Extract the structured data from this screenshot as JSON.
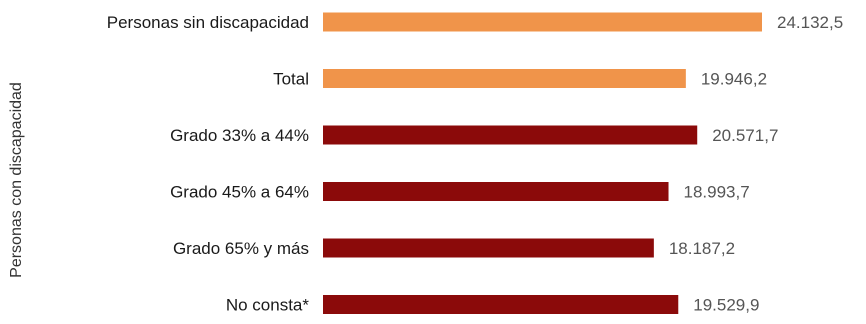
{
  "chart_data": {
    "type": "bar",
    "orientation": "horizontal",
    "categories": [
      "Personas sin discapacidad",
      "Total",
      "Grado 33% a 44%",
      "Grado 45% a 64%",
      "Grado 65% y más",
      "No consta*"
    ],
    "values": [
      24132.5,
      19946.2,
      20571.7,
      18993.7,
      18187.2,
      19529.9
    ],
    "value_labels": [
      "24.132,5",
      "19.946,2",
      "20.571,7",
      "18.993,7",
      "18.187,2",
      "19.529,9"
    ],
    "bar_colors": [
      "#F0944A",
      "#F0944A",
      "#8B0A0A",
      "#8B0A0A",
      "#8B0A0A",
      "#8B0A0A"
    ],
    "xlim": [
      0,
      24132.5
    ],
    "group_label": "Personas con discapacidad",
    "grid": false,
    "legend": "none"
  }
}
